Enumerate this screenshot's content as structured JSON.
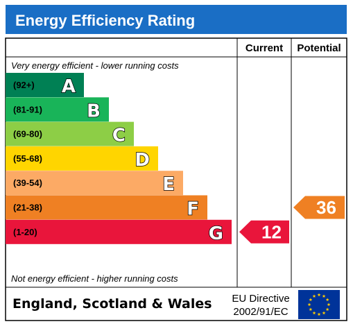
{
  "title": "Energy Efficiency Rating",
  "columns": {
    "current": "Current",
    "potential": "Potential"
  },
  "top_note": "Very energy efficient - lower running costs",
  "bottom_note": "Not energy efficient - higher running costs",
  "footer": {
    "region": "England, Scotland & Wales",
    "directive_line1": "EU Directive",
    "directive_line2": "2002/91/EC"
  },
  "colors": {
    "title_bg": "#1a6ec5",
    "border": "#000000",
    "eu_flag_bg": "#003399",
    "eu_stars": "#ffcc00"
  },
  "chart_data": {
    "type": "bar",
    "categories": [
      "A",
      "B",
      "C",
      "D",
      "E",
      "F",
      "G"
    ],
    "bands": [
      {
        "letter": "A",
        "range": "(92+)",
        "color": "#008054"
      },
      {
        "letter": "B",
        "range": "(81-91)",
        "color": "#19b459"
      },
      {
        "letter": "C",
        "range": "(69-80)",
        "color": "#8dce46"
      },
      {
        "letter": "D",
        "range": "(55-68)",
        "color": "#ffd500"
      },
      {
        "letter": "E",
        "range": "(39-54)",
        "color": "#fcaa65"
      },
      {
        "letter": "F",
        "range": "(21-38)",
        "color": "#ef8023"
      },
      {
        "letter": "G",
        "range": "(1-20)",
        "color": "#e9153b"
      }
    ],
    "current": {
      "value": 12,
      "band": "G"
    },
    "potential": {
      "value": 36,
      "band": "F"
    }
  }
}
